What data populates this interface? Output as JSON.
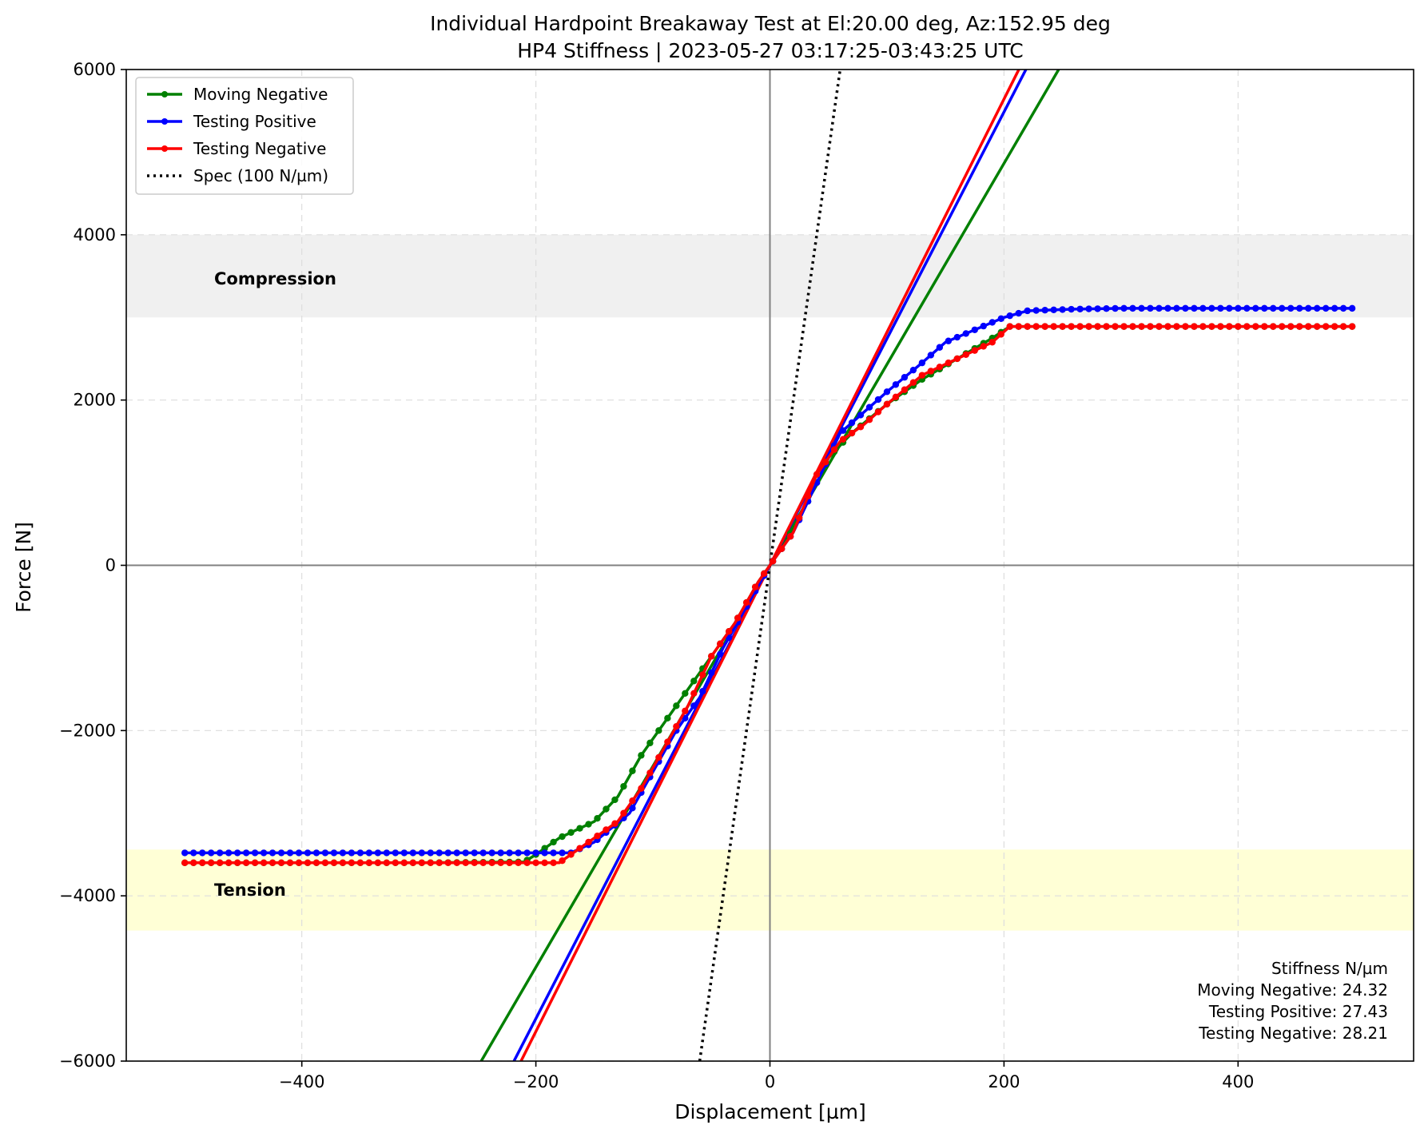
{
  "chart_data": {
    "type": "line",
    "title": "Individual Hardpoint Breakaway Test at El:20.00 deg, Az:152.95 deg",
    "subtitle": "HP4 Stiffness | 2023-05-27 03:17:25-03:43:25 UTC",
    "xlabel": "Displacement [µm]",
    "ylabel": "Force [N]",
    "xlim": [
      -550,
      550
    ],
    "ylim": [
      -6000,
      6000
    ],
    "xticks": [
      -400,
      -200,
      0,
      200,
      400
    ],
    "yticks": [
      -6000,
      -4000,
      -2000,
      0,
      2000,
      4000,
      6000
    ],
    "xtick_labels": [
      "−400",
      "−200",
      "0",
      "200",
      "400"
    ],
    "ytick_labels": [
      "−6000",
      "−4000",
      "−2000",
      "0",
      "2000",
      "4000",
      "6000"
    ],
    "grid": true,
    "legend_position": "top-left",
    "bands": [
      {
        "label": "Compression",
        "y_range": [
          3000,
          4000
        ],
        "color": "#f0f0f0"
      },
      {
        "label": "Tension",
        "y_range": [
          -4420,
          -3440
        ],
        "color": "#ffffd6"
      }
    ],
    "series": [
      {
        "name": "Moving Negative",
        "color": "#008000",
        "points": [
          [
            -500,
            -3600
          ],
          [
            -400,
            -3600
          ],
          [
            -300,
            -3600
          ],
          [
            -210,
            -3590
          ],
          [
            -200,
            -3500
          ],
          [
            -180,
            -3300
          ],
          [
            -150,
            -3100
          ],
          [
            -130,
            -2800
          ],
          [
            -110,
            -2300
          ],
          [
            -90,
            -1900
          ],
          [
            -70,
            -1500
          ],
          [
            -50,
            -1100
          ],
          [
            -30,
            -700
          ],
          [
            -10,
            -200
          ],
          [
            0,
            0
          ],
          [
            10,
            200
          ],
          [
            30,
            700
          ],
          [
            50,
            1300
          ],
          [
            70,
            1600
          ],
          [
            100,
            1950
          ],
          [
            130,
            2250
          ],
          [
            160,
            2500
          ],
          [
            190,
            2750
          ],
          [
            205,
            2890
          ],
          [
            220,
            2890
          ],
          [
            300,
            2890
          ],
          [
            400,
            2890
          ],
          [
            500,
            2890
          ]
        ],
        "fit_slope": 24.32
      },
      {
        "name": "Testing Positive",
        "color": "#0000ff",
        "points": [
          [
            -500,
            -3480
          ],
          [
            -400,
            -3480
          ],
          [
            -300,
            -3480
          ],
          [
            -200,
            -3480
          ],
          [
            -170,
            -3480
          ],
          [
            -150,
            -3350
          ],
          [
            -120,
            -3000
          ],
          [
            -100,
            -2500
          ],
          [
            -80,
            -2000
          ],
          [
            -60,
            -1600
          ],
          [
            -40,
            -1000
          ],
          [
            -20,
            -500
          ],
          [
            0,
            0
          ],
          [
            20,
            400
          ],
          [
            40,
            1000
          ],
          [
            60,
            1600
          ],
          [
            80,
            1850
          ],
          [
            100,
            2100
          ],
          [
            130,
            2450
          ],
          [
            150,
            2700
          ],
          [
            180,
            2880
          ],
          [
            200,
            3000
          ],
          [
            220,
            3080
          ],
          [
            260,
            3100
          ],
          [
            300,
            3110
          ],
          [
            400,
            3110
          ],
          [
            500,
            3110
          ]
        ],
        "fit_slope": 27.43
      },
      {
        "name": "Testing Negative",
        "color": "#ff0000",
        "points": [
          [
            -500,
            -3600
          ],
          [
            -400,
            -3600
          ],
          [
            -300,
            -3600
          ],
          [
            -200,
            -3600
          ],
          [
            -180,
            -3600
          ],
          [
            -160,
            -3400
          ],
          [
            -130,
            -3100
          ],
          [
            -110,
            -2700
          ],
          [
            -90,
            -2200
          ],
          [
            -70,
            -1700
          ],
          [
            -50,
            -1100
          ],
          [
            -30,
            -700
          ],
          [
            -10,
            -200
          ],
          [
            0,
            0
          ],
          [
            20,
            400
          ],
          [
            40,
            1100
          ],
          [
            60,
            1500
          ],
          [
            80,
            1700
          ],
          [
            100,
            1950
          ],
          [
            130,
            2300
          ],
          [
            160,
            2500
          ],
          [
            190,
            2700
          ],
          [
            205,
            2890
          ],
          [
            220,
            2890
          ],
          [
            300,
            2890
          ],
          [
            400,
            2890
          ],
          [
            500,
            2890
          ]
        ],
        "fit_slope": 28.21
      },
      {
        "name": "Spec (100 N/µm)",
        "color": "#000000",
        "style": "dotted",
        "fit_slope": 100
      }
    ],
    "stiffness_box": {
      "title": "Stiffness N/µm",
      "lines": [
        "Moving Negative: 24.32",
        "Testing Positive: 27.43",
        "Testing Negative: 28.21"
      ]
    }
  }
}
